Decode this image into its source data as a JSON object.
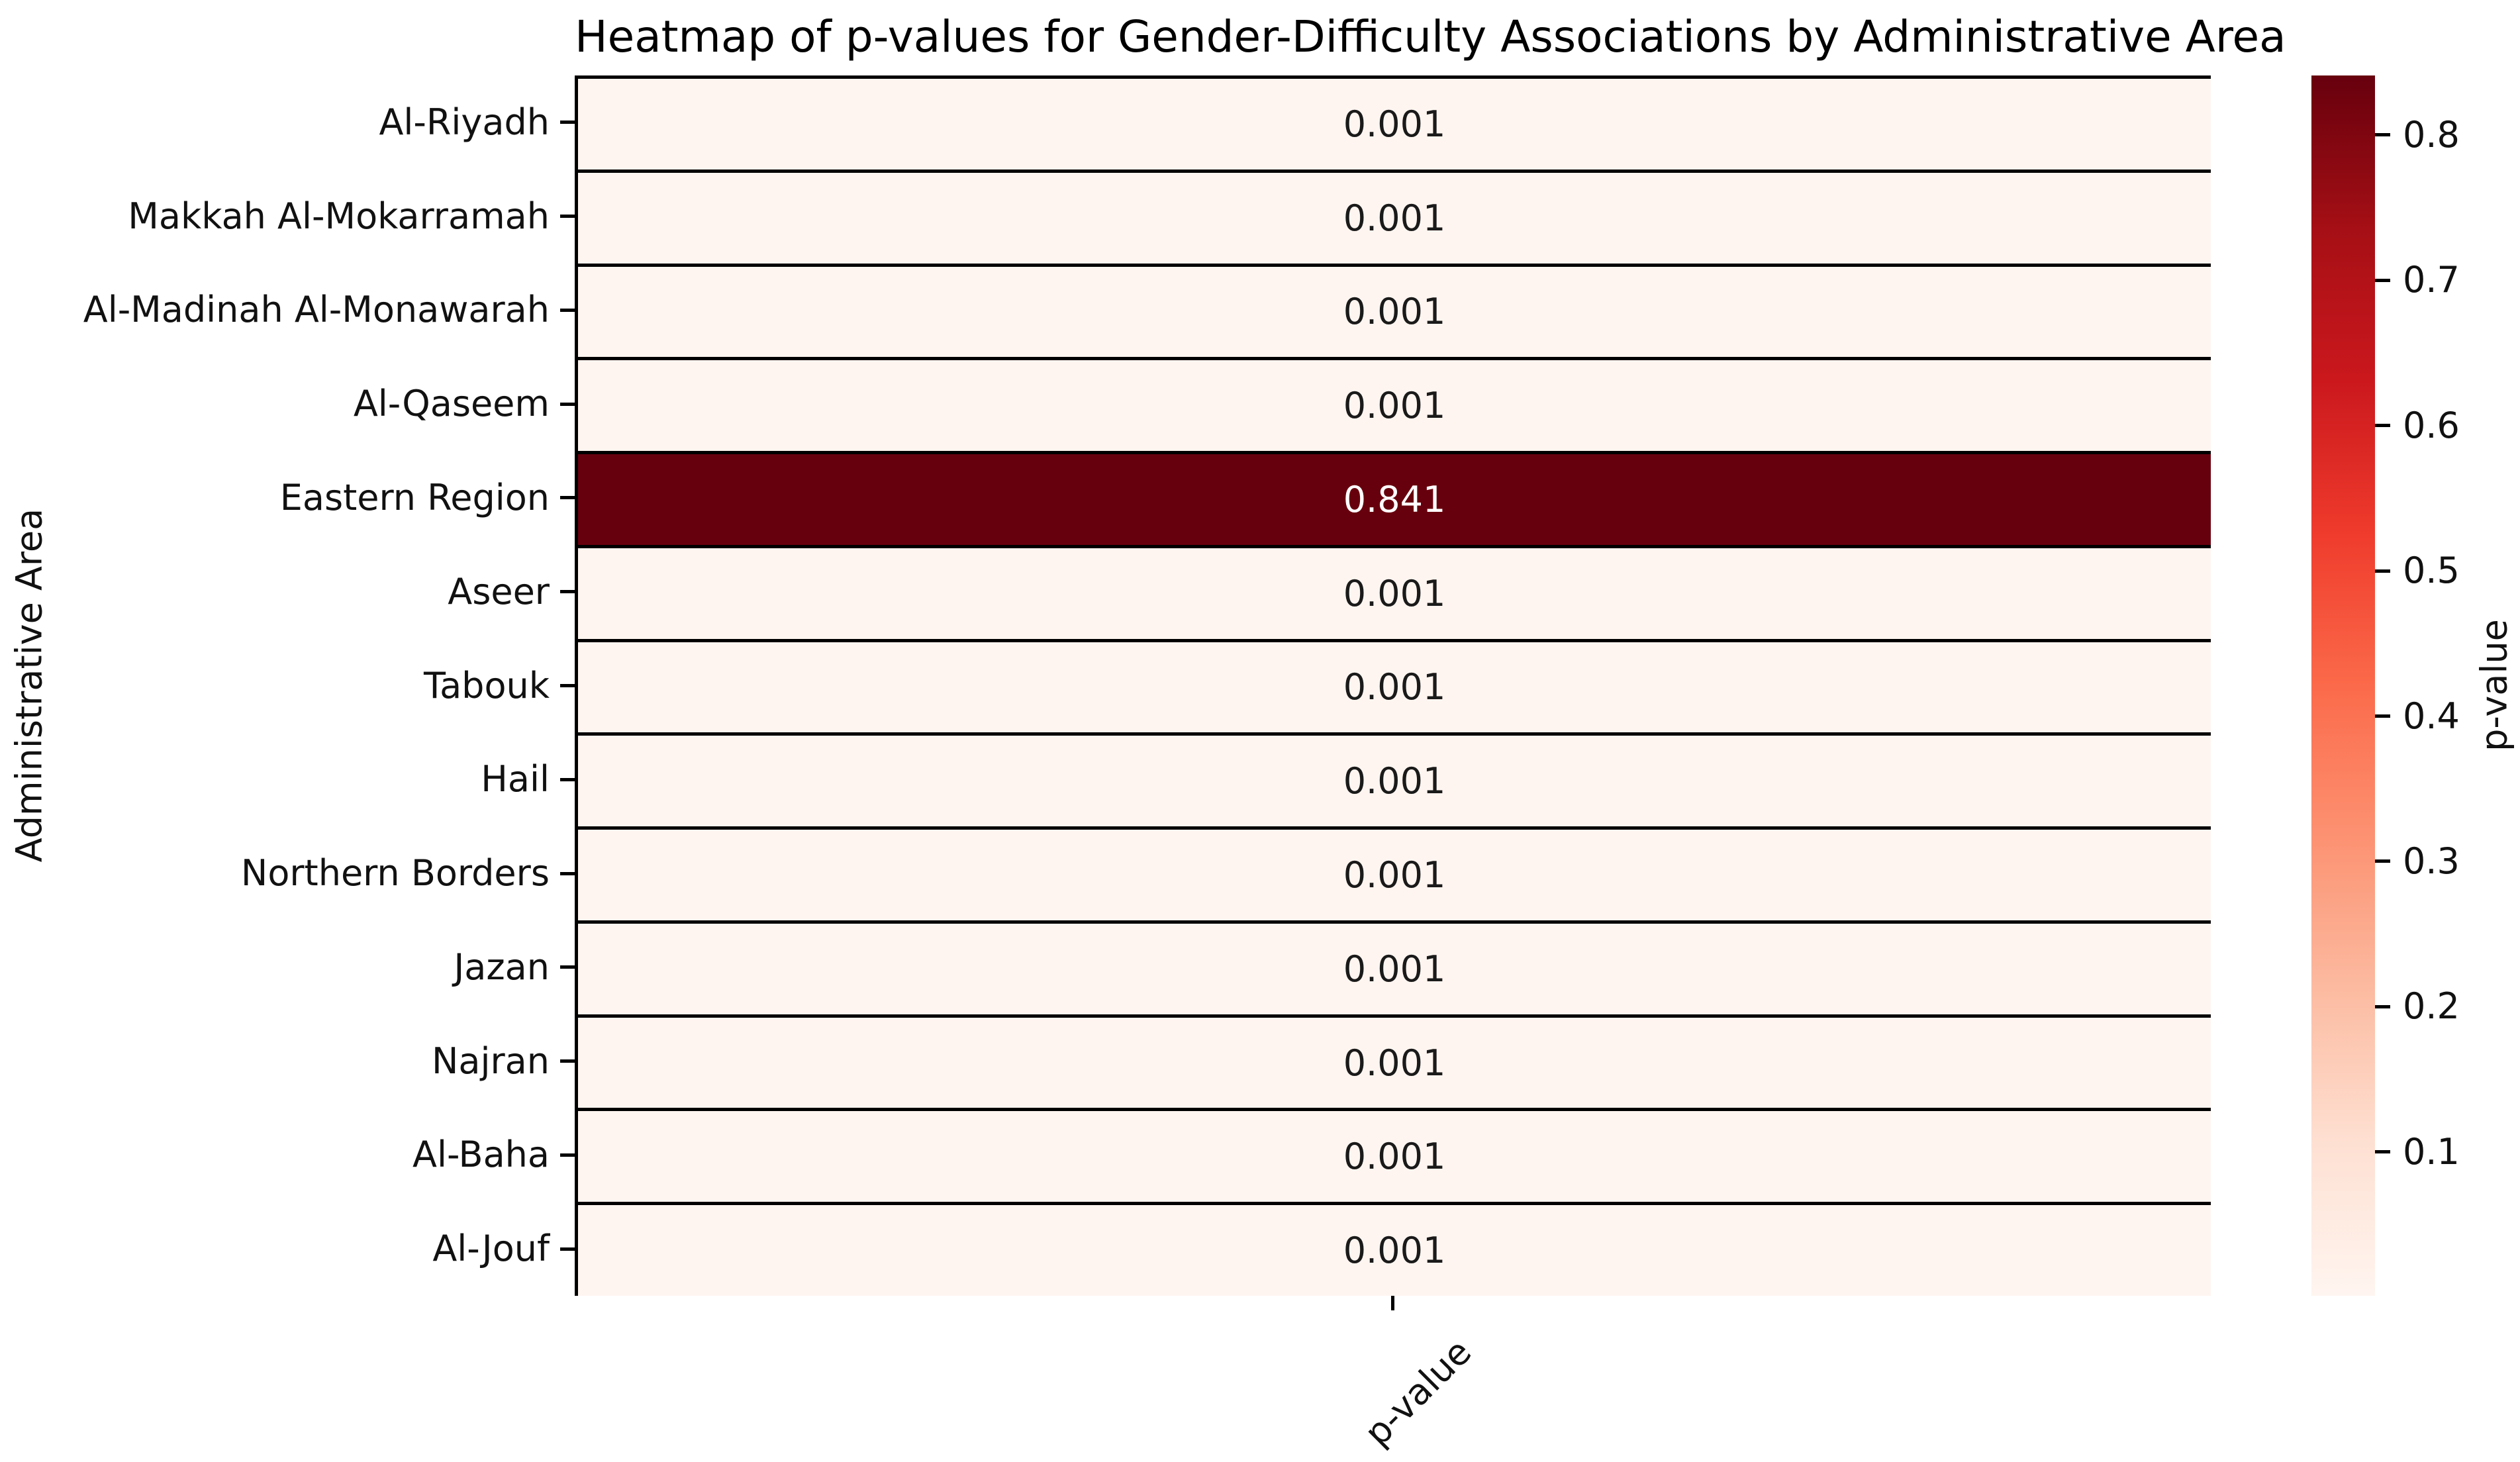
{
  "title": "Heatmap of p-values for Gender-Difficulty Associations by Administrative Area",
  "axes": {
    "y_label": "Administrative Area",
    "x_tick_label": "p-value"
  },
  "colorbar": {
    "label": "p-value",
    "tick_values": [
      0.8,
      0.7,
      0.6,
      0.5,
      0.4,
      0.3,
      0.2,
      0.1
    ],
    "vmin": 0.001,
    "vmax": 0.841,
    "gradient_stops": [
      "#fff5f0",
      "#fee0d2",
      "#fcbba1",
      "#fc9272",
      "#fb6a4a",
      "#ef3b2c",
      "#cb181d",
      "#a50f15",
      "#67000d"
    ]
  },
  "colors": {
    "background": "#ffffff",
    "cell_min": "#fff5f0",
    "cell_max": "#67000d",
    "grid_line": "#000000",
    "annot_on_light": "#1a1a1a",
    "annot_on_dark": "#ffffff"
  },
  "chart_data": {
    "type": "heatmap",
    "title": "Heatmap of p-values for Gender-Difficulty Associations by Administrative Area",
    "ylabel": "Administrative Area",
    "columns": [
      "p-value"
    ],
    "rows": [
      "Al-Riyadh",
      "Makkah Al-Mokarramah",
      "Al-Madinah Al-Monawarah",
      "Al-Qaseem",
      "Eastern Region",
      "Aseer",
      "Tabouk",
      "Hail",
      "Northern Borders",
      "Jazan",
      "Najran",
      "Al-Baha",
      "Al-Jouf"
    ],
    "values": [
      [
        0.001
      ],
      [
        0.001
      ],
      [
        0.001
      ],
      [
        0.001
      ],
      [
        0.841
      ],
      [
        0.001
      ],
      [
        0.001
      ],
      [
        0.001
      ],
      [
        0.001
      ],
      [
        0.001
      ],
      [
        0.001
      ],
      [
        0.001
      ],
      [
        0.001
      ]
    ],
    "value_format_decimals": 3,
    "cmap": "Reds",
    "colorbar_label": "p-value",
    "colorbar_ticks": [
      0.1,
      0.2,
      0.3,
      0.4,
      0.5,
      0.6,
      0.7,
      0.8
    ],
    "color_scale_range": [
      0.001,
      0.841
    ],
    "grid": "black lines between rows, top and left edges",
    "legend_position": "right-colorbar"
  }
}
